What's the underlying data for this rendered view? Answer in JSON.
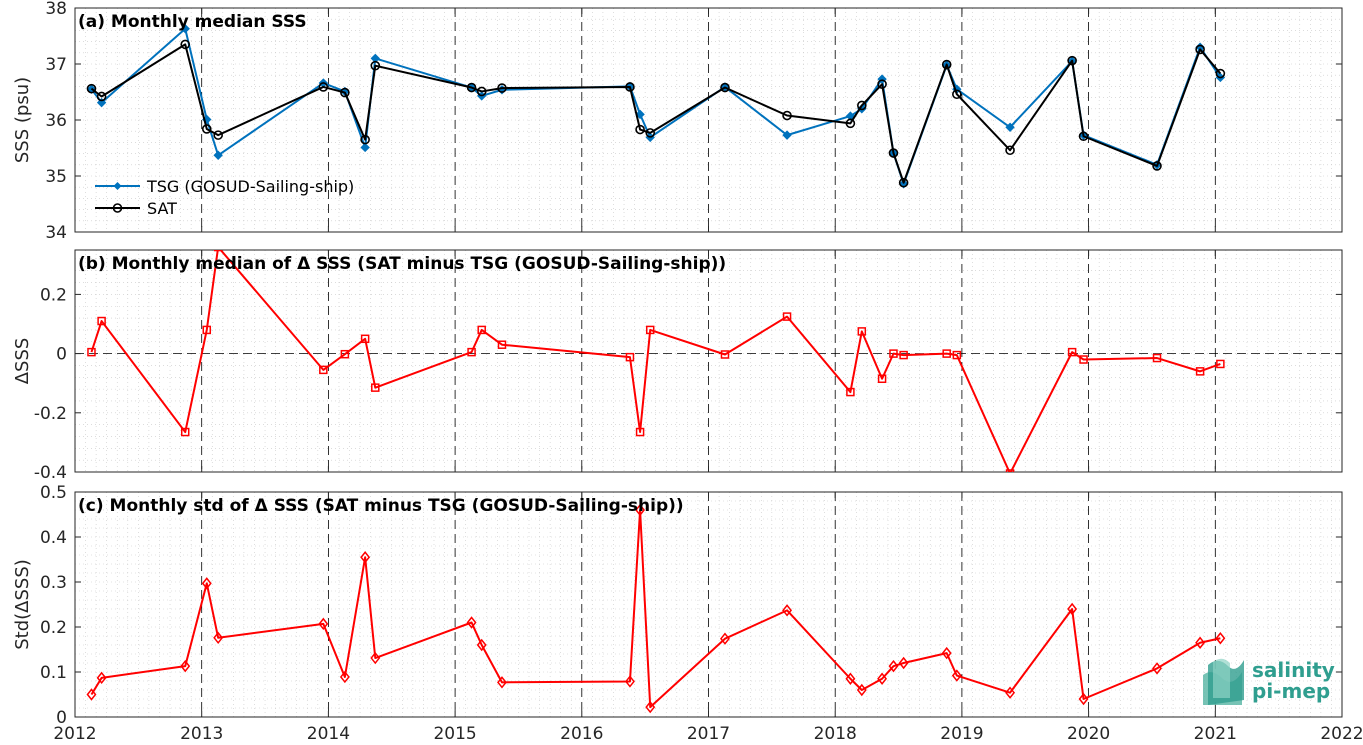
{
  "figure": {
    "x_tick_labels": [
      "2012",
      "2013",
      "2014",
      "2015",
      "2016",
      "2017",
      "2018",
      "2019",
      "2020",
      "2021",
      "2022"
    ],
    "logo": {
      "line1": "salinity",
      "line2": "pi-mep"
    }
  },
  "colors": {
    "tsg": "#0072BD",
    "sat": "#000000",
    "delta": "#ff0000",
    "grid": "#c8c8c8",
    "year_line": "#000000"
  },
  "chart_data": [
    {
      "type": "line",
      "title": "(a) Monthly median SSS",
      "xlabel": "",
      "ylabel": "SSS (psu)",
      "xlim": [
        2012,
        2022
      ],
      "ylim": [
        34,
        38
      ],
      "yticks": [
        34,
        35,
        36,
        37,
        38
      ],
      "ytick_labels": [
        "34",
        "35",
        "36",
        "37",
        "38"
      ],
      "legend": "lower-left",
      "grid": true,
      "x": [
        2012.13,
        2012.21,
        2012.87,
        2013.04,
        2013.13,
        2013.96,
        2014.13,
        2014.29,
        2014.37,
        2015.13,
        2015.21,
        2015.37,
        2016.38,
        2016.46,
        2016.54,
        2017.13,
        2017.62,
        2018.12,
        2018.21,
        2018.37,
        2018.46,
        2018.54,
        2018.88,
        2018.96,
        2019.38,
        2019.87,
        2019.96,
        2020.54,
        2020.88,
        2021.04
      ],
      "series": [
        {
          "name": "TSG (GOSUD-Sailing-ship)",
          "color": "#0072BD",
          "marker": "filled-diamond",
          "values": [
            36.55,
            36.31,
            37.63,
            36.01,
            35.37,
            36.66,
            36.51,
            35.51,
            37.1,
            36.58,
            36.43,
            36.54,
            36.6,
            36.1,
            35.69,
            36.59,
            35.73,
            36.07,
            36.2,
            36.73,
            35.41,
            34.86,
            36.98,
            36.55,
            35.87,
            37.05,
            35.73,
            35.2,
            37.3,
            36.76
          ]
        },
        {
          "name": "SAT",
          "color": "#000000",
          "marker": "open-circle",
          "values": [
            36.56,
            36.42,
            37.35,
            35.84,
            35.73,
            36.59,
            36.49,
            35.65,
            36.97,
            36.58,
            36.51,
            36.57,
            36.59,
            35.83,
            35.77,
            36.58,
            36.08,
            35.94,
            36.26,
            36.64,
            35.41,
            34.88,
            36.99,
            36.46,
            35.46,
            37.06,
            35.71,
            35.18,
            37.26,
            36.83
          ]
        }
      ]
    },
    {
      "type": "line",
      "title": "(b) Monthly median of Δ SSS (SAT minus TSG (GOSUD-Sailing-ship))",
      "xlabel": "",
      "ylabel": "ΔSSS",
      "xlim": [
        2012,
        2022
      ],
      "ylim": [
        -0.4,
        0.35
      ],
      "yticks": [
        -0.4,
        -0.2,
        0,
        0.2
      ],
      "ytick_labels": [
        "-0.4",
        "-0.2",
        "0",
        "0.2"
      ],
      "zero_line": true,
      "grid": true,
      "x": [
        2012.13,
        2012.21,
        2012.87,
        2013.04,
        2013.13,
        2013.96,
        2014.13,
        2014.29,
        2014.37,
        2015.13,
        2015.21,
        2015.37,
        2016.38,
        2016.46,
        2016.54,
        2017.13,
        2017.62,
        2018.12,
        2018.21,
        2018.37,
        2018.46,
        2018.54,
        2018.88,
        2018.96,
        2019.38,
        2019.87,
        2019.96,
        2020.54,
        2020.88,
        2021.04
      ],
      "series": [
        {
          "color": "#ff0000",
          "marker": "open-square",
          "values": [
            0.005,
            0.11,
            -0.265,
            0.08,
            0.36,
            -0.055,
            -0.002,
            0.05,
            -0.115,
            0.005,
            0.08,
            0.03,
            -0.012,
            -0.265,
            0.08,
            -0.003,
            0.125,
            -0.13,
            0.075,
            -0.085,
            0.0,
            -0.005,
            0.0,
            -0.005,
            -0.405,
            0.005,
            -0.02,
            -0.015,
            -0.06,
            -0.035
          ]
        }
      ]
    },
    {
      "type": "line",
      "title": "(c) Monthly std of Δ SSS (SAT minus TSG (GOSUD-Sailing-ship))",
      "xlabel": "",
      "ylabel": "Std(ΔSSS)",
      "xlim": [
        2012,
        2022
      ],
      "ylim": [
        0,
        0.5
      ],
      "yticks": [
        0,
        0.1,
        0.2,
        0.3,
        0.4,
        0.5
      ],
      "ytick_labels": [
        "0",
        "0.1",
        "0.2",
        "0.3",
        "0.4",
        "0.5"
      ],
      "grid": true,
      "x": [
        2012.13,
        2012.21,
        2012.87,
        2013.04,
        2013.13,
        2013.96,
        2014.13,
        2014.29,
        2014.37,
        2015.13,
        2015.21,
        2015.37,
        2016.38,
        2016.46,
        2016.54,
        2017.13,
        2017.62,
        2018.12,
        2018.21,
        2018.37,
        2018.46,
        2018.54,
        2018.88,
        2018.96,
        2019.38,
        2019.87,
        2019.96,
        2020.54,
        2020.88,
        2021.04
      ],
      "series": [
        {
          "color": "#ff0000",
          "marker": "open-diamond",
          "values": [
            0.05,
            0.087,
            0.113,
            0.297,
            0.176,
            0.207,
            0.089,
            0.355,
            0.131,
            0.21,
            0.16,
            0.077,
            0.079,
            0.46,
            0.022,
            0.174,
            0.237,
            0.085,
            0.06,
            0.085,
            0.113,
            0.12,
            0.142,
            0.092,
            0.054,
            0.24,
            0.04,
            0.108,
            0.165,
            0.175
          ]
        }
      ]
    }
  ]
}
